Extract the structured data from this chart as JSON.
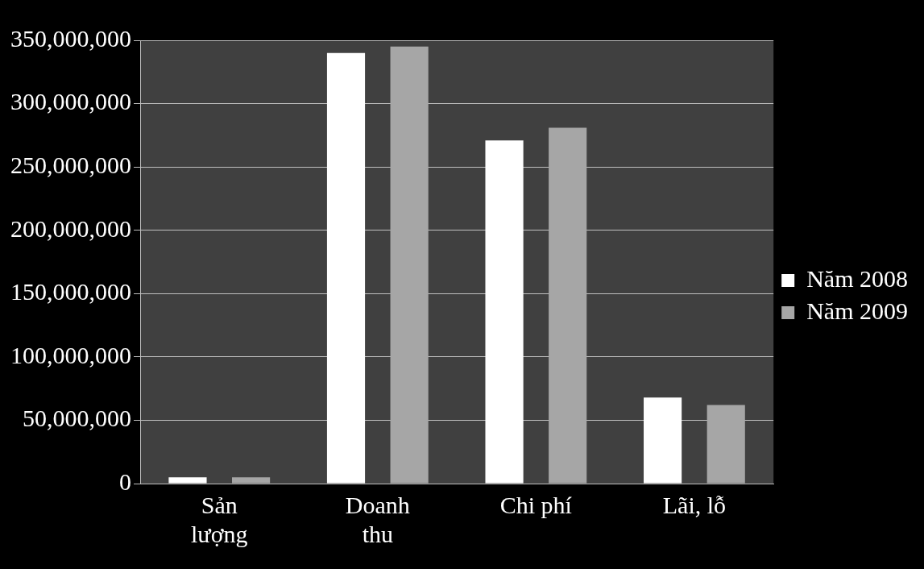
{
  "chart_data": {
    "type": "bar",
    "categories": [
      "Sản lượng",
      "Doanh thu",
      "Chi phí",
      "Lãi, lỗ"
    ],
    "series": [
      {
        "name": "Năm 2008",
        "color": "#ffffff",
        "values": [
          5000000,
          340000000,
          271000000,
          68000000
        ]
      },
      {
        "name": "Năm 2009",
        "color": "#a6a6a6",
        "values": [
          5000000,
          345000000,
          281000000,
          62000000
        ]
      }
    ],
    "ylim": [
      0,
      350000000
    ],
    "yticks": [
      {
        "value": 0,
        "label": "0"
      },
      {
        "value": 50000000,
        "label": "50,000,000"
      },
      {
        "value": 100000000,
        "label": "100,000,000"
      },
      {
        "value": 150000000,
        "label": "150,000,000"
      },
      {
        "value": 200000000,
        "label": "200,000,000"
      },
      {
        "value": 250000000,
        "label": "250,000,000"
      },
      {
        "value": 300000000,
        "label": "300,000,000"
      },
      {
        "value": 350000000,
        "label": "350,000,000"
      }
    ],
    "grid": "y",
    "legend": "right"
  }
}
